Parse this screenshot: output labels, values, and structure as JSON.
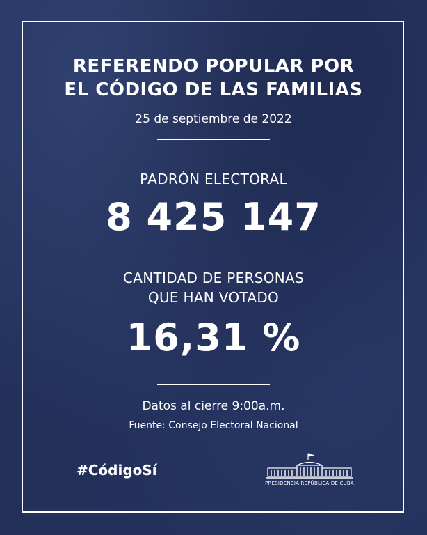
{
  "header": {
    "title_line1": "REFERENDO POPULAR POR",
    "title_line2": "EL CÓDIGO DE LAS FAMILIAS",
    "date": "25 de septiembre de 2022"
  },
  "stats": {
    "padron_label": "PADRÓN ELECTORAL",
    "padron_value": "8 425 147",
    "votantes_label_line1": "CANTIDAD DE PERSONAS",
    "votantes_label_line2": "QUE HAN VOTADO",
    "votantes_value": "16,31 %"
  },
  "footer": {
    "cierre": "Datos al cierre 9:00a.m.",
    "fuente": "Fuente: Consejo Electoral Nacional",
    "hashtag": "#CódigoSí",
    "logo_text": "PRESIDENCIA REPÚBLICA DE CUBA"
  },
  "colors": {
    "background": "#22305a",
    "text": "#ffffff"
  },
  "icons": {
    "logo": "presidential-palace-icon"
  }
}
